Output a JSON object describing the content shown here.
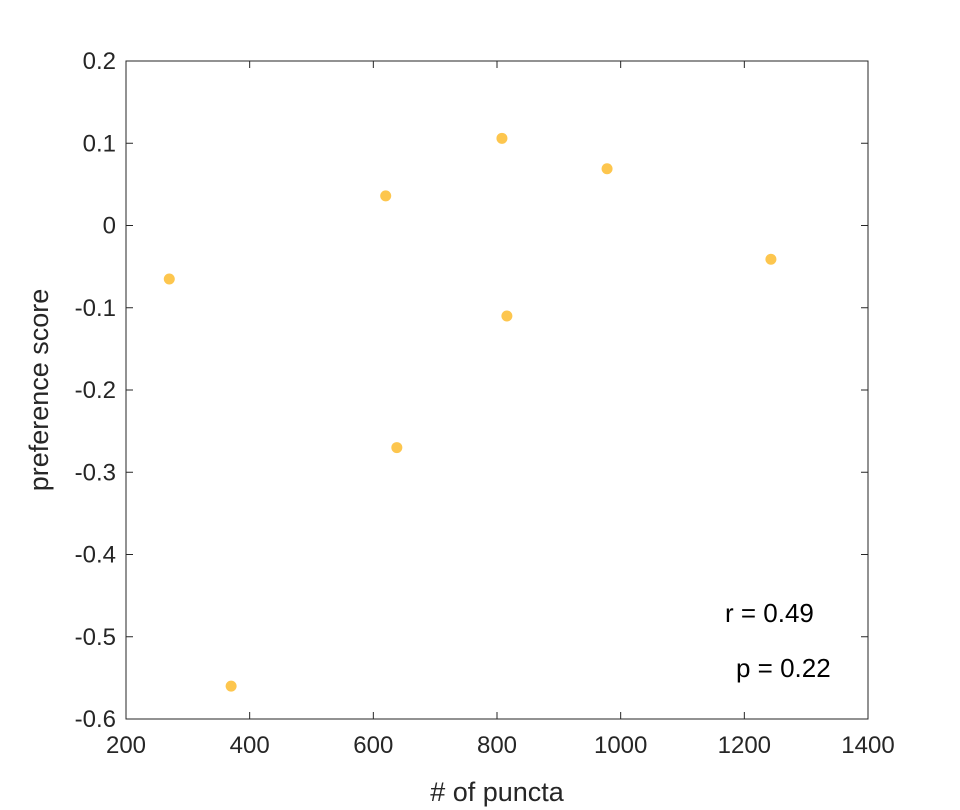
{
  "chart_data": {
    "type": "scatter",
    "xlabel": "# of puncta",
    "ylabel": "preference score",
    "xlim": [
      200,
      1400
    ],
    "ylim": [
      -0.6,
      0.2
    ],
    "xticks": [
      200,
      400,
      600,
      800,
      1000,
      1200,
      1400
    ],
    "yticks": [
      -0.6,
      -0.5,
      -0.4,
      -0.3,
      -0.2,
      -0.1,
      0,
      0.1,
      0.2
    ],
    "xtick_labels": [
      "200",
      "400",
      "600",
      "800",
      "1000",
      "1200",
      "1400"
    ],
    "ytick_labels": [
      "-0.6",
      "-0.5",
      "-0.4",
      "-0.3",
      "-0.2",
      "-0.1",
      "0",
      "0.1",
      "0.2"
    ],
    "grid": false,
    "box": true,
    "series": [
      {
        "color": "#FDC64E",
        "x": [
          270,
          370,
          620,
          638,
          808,
          816,
          978,
          1243
        ],
        "y": [
          -0.065,
          -0.56,
          0.036,
          -0.27,
          0.106,
          -0.11,
          0.069,
          -0.041
        ]
      }
    ],
    "annotations": [
      "r = 0.49",
      "p = 0.22"
    ]
  }
}
